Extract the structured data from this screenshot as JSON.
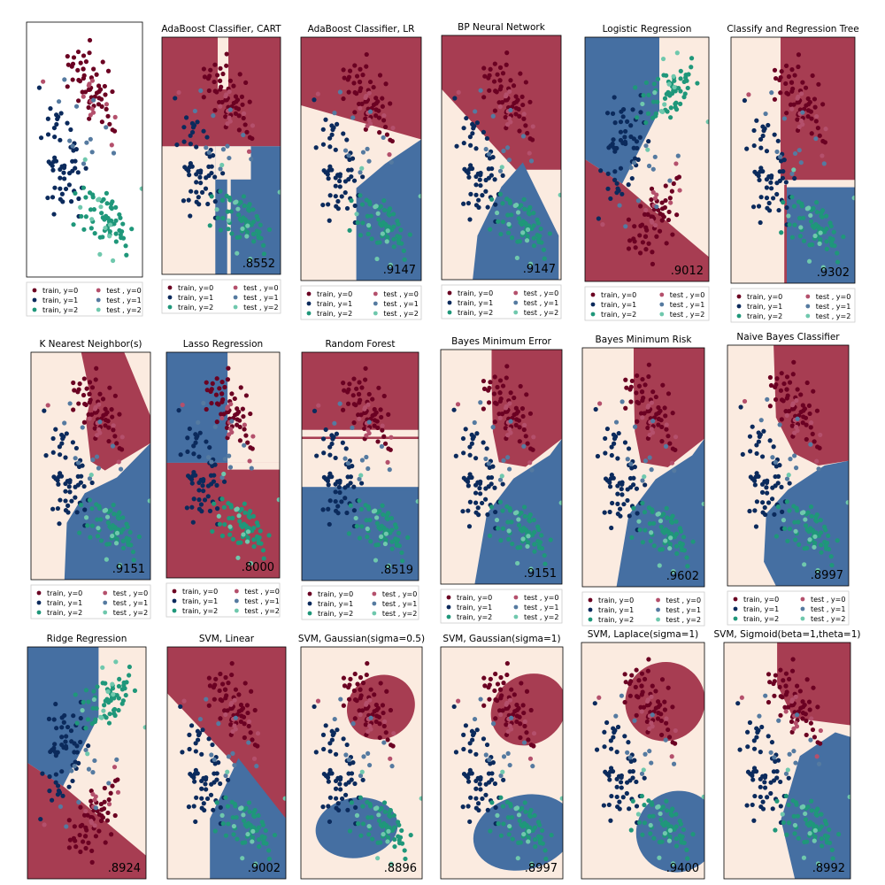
{
  "colors": {
    "class0_region": "#a73d52",
    "class1_region": "#fbebe0",
    "class2_region": "#456fa2",
    "class0_point": "#6b0022",
    "class1_point": "#0b2a5c",
    "class2_point": "#1f977a",
    "test0_point": "#b4506c",
    "test1_point": "#557aa0",
    "test2_point": "#6fc8ad",
    "frame": "#000000"
  },
  "legend": {
    "train0": "train, y=0",
    "train1": "train, y=1",
    "train2": "train, y=2",
    "test0": "test , y=0",
    "test1": "test , y=1",
    "test2": "test , y=2"
  },
  "chart_data": [
    {
      "type": "scatter",
      "title": "",
      "score": "",
      "decision_map": "none"
    },
    {
      "type": "scatter",
      "title": "AdaBoost Classifier, CART",
      "score": ".8552",
      "decision_map": "ada_cart"
    },
    {
      "type": "scatter",
      "title": "AdaBoost Classifier, LR",
      "score": ".9147",
      "decision_map": "ada_lr"
    },
    {
      "type": "scatter",
      "title": "BP Neural Network",
      "score": ".9147",
      "decision_map": "bp"
    },
    {
      "type": "scatter",
      "title": "Logistic Regression",
      "score": ".9012",
      "decision_map": "logreg"
    },
    {
      "type": "scatter",
      "title": "Classify and Regression Tree",
      "score": ".9302",
      "decision_map": "cart"
    },
    {
      "type": "scatter",
      "title": "K Nearest Neighbor(s)",
      "score": ".9151",
      "decision_map": "knn"
    },
    {
      "type": "scatter",
      "title": "Lasso Regression",
      "score": ".8000",
      "decision_map": "lasso"
    },
    {
      "type": "scatter",
      "title": "Random Forest",
      "score": ".8519",
      "decision_map": "rf"
    },
    {
      "type": "scatter",
      "title": "Bayes Minimum Error",
      "score": ".9151",
      "decision_map": "bayes"
    },
    {
      "type": "scatter",
      "title": "Bayes Minimum Risk",
      "score": ".9602",
      "decision_map": "bayes"
    },
    {
      "type": "scatter",
      "title": "Naive Bayes Classifier",
      "score": ".8997",
      "decision_map": "nbayes"
    },
    {
      "type": "scatter",
      "title": "Ridge Regression",
      "score": ".8924",
      "decision_map": "logreg"
    },
    {
      "type": "scatter",
      "title": "SVM, Linear",
      "score": ".9002",
      "decision_map": "svm_lin"
    },
    {
      "type": "scatter",
      "title": "SVM, Gaussian(sigma=0.5)",
      "score": ".8896",
      "decision_map": "gauss05"
    },
    {
      "type": "scatter",
      "title": "SVM, Gaussian(sigma=1)",
      "score": ".8997",
      "decision_map": "gauss1"
    },
    {
      "type": "scatter",
      "title": "SVM, Laplace(sigma=1)",
      "score": ".9400",
      "decision_map": "laplace"
    },
    {
      "type": "scatter",
      "title": "SVM, Sigmoid(beta=1,theta=1)",
      "score": ".8992",
      "decision_map": "sigmoid"
    }
  ]
}
